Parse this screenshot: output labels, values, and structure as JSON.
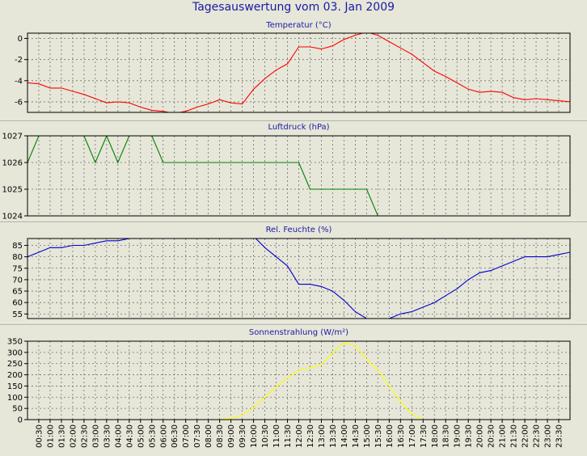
{
  "page": {
    "title": "Tagesauswertung vom 03. Jan 2009"
  },
  "time_labels": [
    "00:30",
    "01:00",
    "01:30",
    "02:00",
    "02:30",
    "03:00",
    "03:30",
    "04:00",
    "04:30",
    "05:00",
    "05:30",
    "06:00",
    "06:30",
    "07:00",
    "07:30",
    "08:00",
    "08:30",
    "09:00",
    "09:30",
    "10:00",
    "10:30",
    "11:00",
    "11:30",
    "12:00",
    "12:30",
    "13:00",
    "13:30",
    "14:00",
    "14:30",
    "15:00",
    "15:30",
    "16:00",
    "16:30",
    "17:00",
    "17:30",
    "18:00",
    "18:30",
    "19:00",
    "19:30",
    "20:00",
    "20:30",
    "21:00",
    "21:30",
    "22:00",
    "22:30",
    "23:00",
    "23:30"
  ],
  "chart_data": [
    {
      "type": "line",
      "title": "Temperatur (°C)",
      "ylim": [
        -7,
        0.5
      ],
      "yticks": [
        0,
        -2,
        -4,
        -6
      ],
      "grid": true,
      "series": [
        {
          "color": "#ff0000",
          "x": [
            "00:00",
            "00:30",
            "01:00",
            "01:30",
            "02:00",
            "02:30",
            "03:00",
            "03:30",
            "04:00",
            "04:30",
            "05:00",
            "05:30",
            "06:00",
            "06:30",
            "07:00",
            "07:30",
            "08:00",
            "08:30",
            "09:00",
            "09:30",
            "10:00",
            "10:30",
            "11:00",
            "11:30",
            "12:00",
            "12:30",
            "13:00",
            "13:30",
            "14:00",
            "14:30",
            "15:00",
            "15:30",
            "16:00",
            "16:30",
            "17:00",
            "17:30",
            "18:00",
            "18:30",
            "19:00",
            "19:30",
            "20:00",
            "20:30",
            "21:00",
            "21:30",
            "22:00",
            "22:30",
            "23:00",
            "23:30",
            "24:00"
          ],
          "values": [
            -4.2,
            -4.3,
            -4.7,
            -4.7,
            -5.0,
            -5.3,
            -5.7,
            -6.1,
            -6.0,
            -6.1,
            -6.5,
            -6.8,
            -6.9,
            -7.1,
            -6.9,
            -6.5,
            -6.2,
            -5.8,
            -6.1,
            -6.2,
            -4.8,
            -3.8,
            -3.0,
            -2.4,
            -0.8,
            -0.8,
            -1.0,
            -0.7,
            -0.1,
            0.3,
            0.6,
            0.3,
            -0.3,
            -0.9,
            -1.5,
            -2.3,
            -3.1,
            -3.6,
            -4.2,
            -4.8,
            -5.1,
            -5.0,
            -5.1,
            -5.6,
            -5.8,
            -5.7,
            -5.8,
            -5.9,
            -6.0
          ]
        }
      ]
    },
    {
      "type": "line",
      "title": "Luftdruck (hPa)",
      "ylim": [
        1024,
        1027
      ],
      "yticks": [
        1027,
        1026,
        1025,
        1024
      ],
      "grid": true,
      "series": [
        {
          "color": "#008000",
          "x": [
            "00:00",
            "00:30",
            "01:00",
            "02:00",
            "02:30",
            "03:00",
            "03:30",
            "04:00",
            "04:30",
            "05:00",
            "05:30",
            "06:00",
            "12:00",
            "12:30",
            "15:00",
            "15:30",
            "16:00"
          ],
          "values": [
            1026,
            1027,
            1027,
            1027,
            1027,
            1026,
            1027,
            1026,
            1027,
            1027,
            1027,
            1026,
            1026,
            1025,
            1025,
            1024,
            1023.8
          ]
        }
      ]
    },
    {
      "type": "line",
      "title": "Rel. Feuchte (%)",
      "ylim": [
        53,
        88
      ],
      "yticks": [
        85,
        80,
        75,
        70,
        65,
        60,
        55
      ],
      "grid": true,
      "series": [
        {
          "color": "#0000cc",
          "x": [
            "00:00",
            "00:30",
            "01:00",
            "01:30",
            "02:00",
            "02:30",
            "03:00",
            "03:30",
            "04:00",
            "04:30",
            "05:00",
            "05:30",
            "06:00",
            "06:30",
            "07:00",
            "10:00",
            "10:30",
            "11:00",
            "11:30",
            "12:00",
            "12:30",
            "13:00",
            "13:30",
            "14:00",
            "14:30",
            "15:00",
            "15:30",
            "16:00",
            "16:30",
            "17:00",
            "17:30",
            "18:00",
            "18:30",
            "19:00",
            "19:30",
            "20:00",
            "20:30",
            "21:00",
            "21:30",
            "22:00",
            "22:30",
            "23:00",
            "23:30",
            "24:00"
          ],
          "values": [
            80,
            82,
            84,
            84,
            85,
            85,
            86,
            87,
            87,
            88,
            88,
            88,
            88,
            89,
            89,
            89,
            84,
            80,
            76,
            68,
            68,
            67,
            65,
            61,
            56,
            53,
            52,
            53,
            55,
            56,
            58,
            60,
            63,
            66,
            70,
            73,
            74,
            76,
            78,
            80,
            80,
            80,
            81,
            82
          ]
        }
      ]
    },
    {
      "type": "line",
      "title": "Sonnenstrahlung (W/m²)",
      "ylim": [
        0,
        350
      ],
      "yticks": [
        350,
        300,
        250,
        200,
        150,
        100,
        50,
        0
      ],
      "grid": true,
      "series": [
        {
          "color": "#ffff00",
          "x": [
            "08:30",
            "09:00",
            "09:30",
            "10:00",
            "10:30",
            "11:00",
            "11:30",
            "12:00",
            "12:30",
            "13:00",
            "13:30",
            "14:00",
            "14:30",
            "15:00",
            "15:30",
            "16:00",
            "16:30",
            "17:00",
            "17:30"
          ],
          "values": [
            0,
            5,
            20,
            55,
            100,
            145,
            185,
            220,
            232,
            245,
            295,
            345,
            330,
            270,
            220,
            150,
            80,
            25,
            0
          ]
        }
      ]
    }
  ]
}
